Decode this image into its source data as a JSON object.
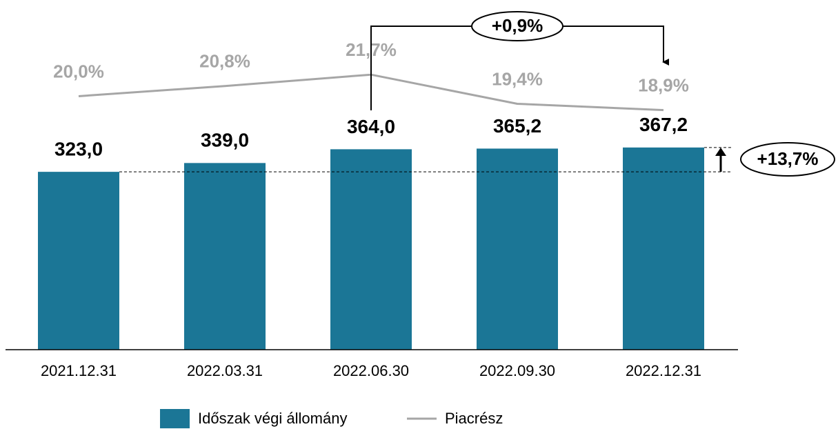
{
  "chart_data": {
    "type": "bar",
    "categories": [
      "2021.12.31",
      "2022.03.31",
      "2022.06.30",
      "2022.09.30",
      "2022.12.31"
    ],
    "series": [
      {
        "name": "Időszak végi állomány",
        "type": "bar",
        "color": "#1b7696",
        "values": [
          323.0,
          339.0,
          364.0,
          365.2,
          367.2
        ],
        "value_labels": [
          "323,0",
          "339,0",
          "364,0",
          "365,2",
          "367,2"
        ]
      },
      {
        "name": "Piacrész",
        "type": "line",
        "axis": "y2",
        "color": "#a6a6a6",
        "values": [
          20.0,
          20.8,
          21.7,
          19.4,
          18.9
        ],
        "value_labels": [
          "20,0%",
          "20,8%",
          "21,7%",
          "19,4%",
          "18,9%"
        ]
      }
    ],
    "ylim": [
      0,
      610
    ],
    "y2lim": [
      0,
      26.5
    ],
    "annotations": [
      "+0,9%",
      "+13,7%"
    ],
    "legend": "bottom"
  }
}
